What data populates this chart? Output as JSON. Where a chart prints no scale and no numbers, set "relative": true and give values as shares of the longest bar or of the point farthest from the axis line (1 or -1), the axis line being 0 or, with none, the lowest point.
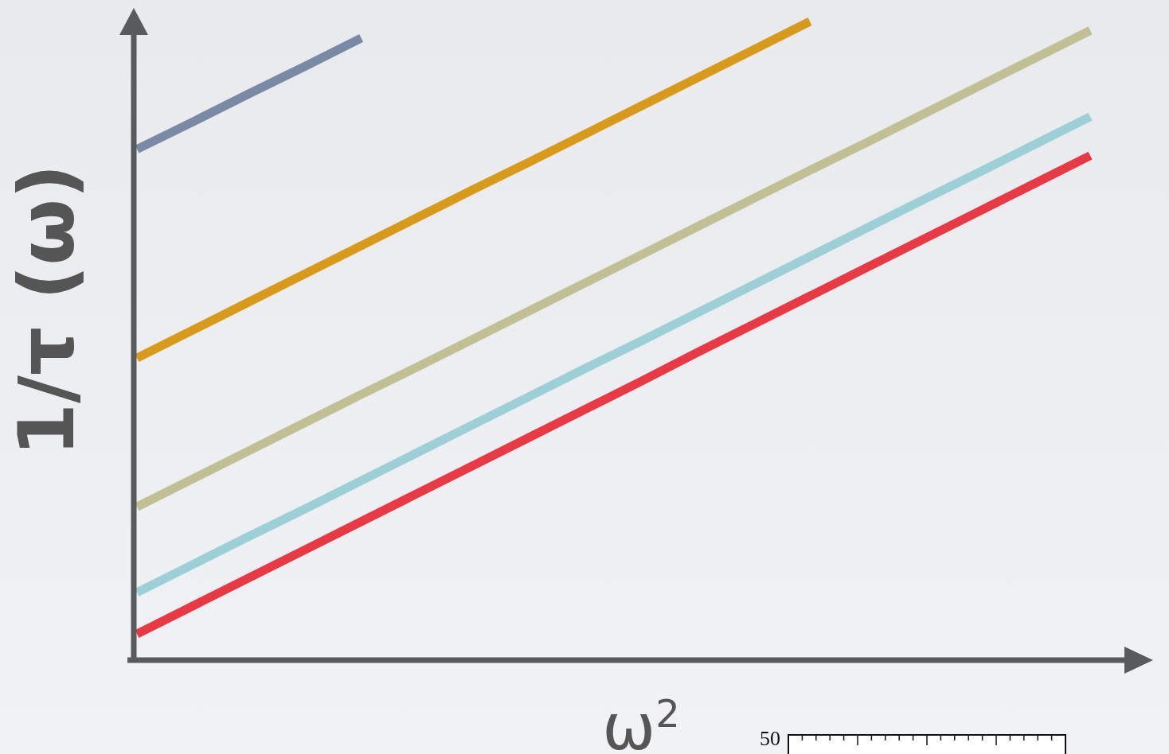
{
  "chart_data": {
    "type": "line",
    "relative": true,
    "xlabel": "ω$^{2}$",
    "ylabel": "1/τ (ω)",
    "categories": [
      null,
      null,
      null,
      null,
      null,
      null,
      null,
      null,
      null,
      null,
      null,
      null,
      null,
      null,
      null,
      null,
      null,
      null
    ],
    "line_style": "solid",
    "series": [
      {
        "color": "#7a8aa5",
        "values": [
          0.8,
          0.843,
          0.887,
          0.93,
          0.974,
          null,
          null,
          null,
          null,
          null,
          null,
          null,
          null,
          null,
          null,
          null,
          null,
          null
        ]
      },
      {
        "color": "#d89a1a",
        "values": [
          0.473,
          0.517,
          0.561,
          0.605,
          0.649,
          0.693,
          0.737,
          0.78,
          0.824,
          0.868,
          0.912,
          0.956,
          1.0,
          null,
          null,
          null,
          null,
          null
        ]
      },
      {
        "color": "#c1bf94",
        "values": [
          0.24,
          0.284,
          0.328,
          0.372,
          0.416,
          0.459,
          0.503,
          0.547,
          0.591,
          0.635,
          0.679,
          0.723,
          0.767,
          0.81,
          0.854,
          0.898,
          0.942,
          0.986
        ]
      },
      {
        "color": "#9dd0d6",
        "values": [
          0.106,
          0.15,
          0.194,
          0.237,
          0.281,
          0.325,
          0.369,
          0.413,
          0.457,
          0.5,
          0.544,
          0.588,
          0.632,
          0.676,
          0.72,
          0.763,
          0.807,
          0.851
        ]
      },
      {
        "color": "#e83a45",
        "values": [
          0.041,
          0.085,
          0.129,
          0.173,
          0.217,
          0.261,
          0.305,
          0.349,
          0.393,
          0.437,
          0.482,
          0.526,
          0.57,
          0.614,
          0.658,
          0.702,
          0.746,
          0.79
        ]
      }
    ],
    "annotations": [
      "50"
    ]
  }
}
